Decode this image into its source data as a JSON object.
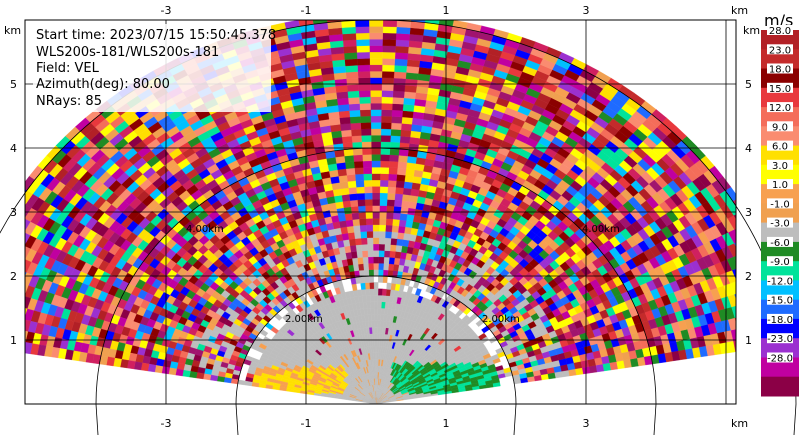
{
  "chart_data": {
    "type": "heatmap",
    "subtype": "radar-rhi-velocity",
    "info_lines": [
      "Start time: 2023/07/15 15:50:45.378",
      "WLS200s-181/WLS200s-181",
      "Field: VEL",
      "Azimuth(deg): 80.00",
      "NRays: 85"
    ],
    "axes": {
      "x_unit": "km",
      "y_unit": "km",
      "x_ticks": [
        -3,
        -1,
        1,
        3
      ],
      "y_ticks": [
        1,
        2,
        3,
        4,
        5
      ],
      "x_range": [
        -5.0,
        5.0
      ],
      "y_range": [
        0.0,
        6.0
      ],
      "grid": true
    },
    "range_rings_km": [
      2,
      4,
      6
    ],
    "ring_labels": [
      "2.00km",
      "2.00km",
      "4.00km",
      "4.00km"
    ],
    "colorbar": {
      "unit": "m/s",
      "levels": [
        "28.0",
        "23.0",
        "18.0",
        "15.0",
        "12.0",
        "9.0",
        "6.0",
        "3.0",
        "1.0",
        "-1.0",
        "-3.0",
        "-6.0",
        "-9.0",
        "-12.0",
        "-15.0",
        "-18.0",
        "-23.0",
        "-28.0"
      ],
      "colors": [
        "#b22026",
        "#c42b2b",
        "#8b0000",
        "#e8383d",
        "#f46d5a",
        "#fa8c70",
        "#ffe000",
        "#ffff00",
        "#f7a050",
        "#f0a050",
        "#bdbdbd",
        "#1f8b24",
        "#00e39a",
        "#00c0ff",
        "#1e6bff",
        "#0000ff",
        "#9b30d0",
        "#c000a0",
        "#8b0046"
      ]
    },
    "scan": {
      "azimuth_deg": 80.0,
      "nrays": 85,
      "max_range_km": 6.0,
      "elevation_range_deg": [
        9,
        171
      ]
    }
  }
}
